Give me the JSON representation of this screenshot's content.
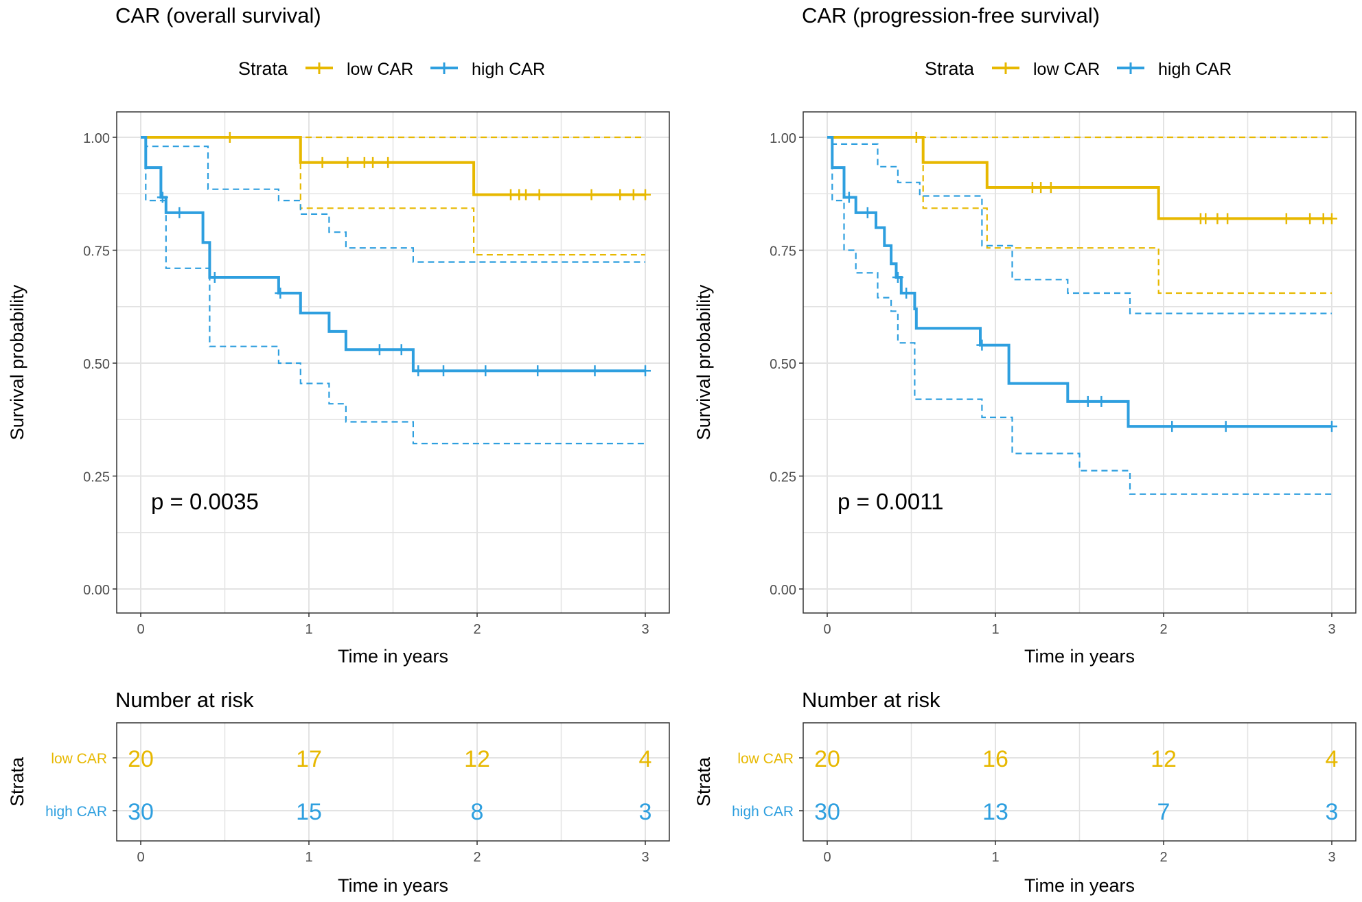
{
  "legend_title": "Strata",
  "strata_labels": [
    "low CAR",
    "high CAR"
  ],
  "strata_colors": [
    "#E7B800",
    "#2E9FDF"
  ],
  "risk_title": "Number at risk",
  "chart_data": [
    {
      "type": "line",
      "subtype": "kaplan-meier",
      "title": "CAR (overall survival)",
      "xlabel": "Time in years",
      "ylabel": "Survival probability",
      "xlim": [
        0,
        3
      ],
      "ylim": [
        0,
        1
      ],
      "xticks": [
        "0",
        "1",
        "2",
        "3"
      ],
      "yticks": [
        "0.00",
        "0.25",
        "0.50",
        "0.75",
        "1.00"
      ],
      "pvalue": "p = 0.0035",
      "series": [
        {
          "name": "low CAR",
          "steps": [
            [
              0,
              1.0
            ],
            [
              0.95,
              0.944
            ],
            [
              1.98,
              0.873
            ],
            [
              3.0,
              0.873
            ]
          ],
          "ci_lower": [
            [
              0,
              1.0
            ],
            [
              0.95,
              0.843
            ],
            [
              1.98,
              0.74
            ],
            [
              3.0,
              0.74
            ]
          ],
          "ci_upper": [
            [
              0,
              1.0
            ],
            [
              3.0,
              1.0
            ]
          ],
          "censor": [
            [
              0.53,
              1.0
            ],
            [
              1.08,
              0.944
            ],
            [
              1.23,
              0.944
            ],
            [
              1.33,
              0.944
            ],
            [
              1.38,
              0.944
            ],
            [
              1.47,
              0.944
            ],
            [
              2.2,
              0.873
            ],
            [
              2.25,
              0.873
            ],
            [
              2.29,
              0.873
            ],
            [
              2.37,
              0.873
            ],
            [
              2.68,
              0.873
            ],
            [
              2.85,
              0.873
            ],
            [
              2.93,
              0.873
            ],
            [
              3.0,
              0.873
            ]
          ]
        },
        {
          "name": "high CAR",
          "steps": [
            [
              0,
              1.0
            ],
            [
              0.03,
              0.933
            ],
            [
              0.12,
              0.867
            ],
            [
              0.15,
              0.833
            ],
            [
              0.37,
              0.767
            ],
            [
              0.41,
              0.69
            ],
            [
              0.82,
              0.655
            ],
            [
              0.95,
              0.611
            ],
            [
              1.12,
              0.57
            ],
            [
              1.22,
              0.53
            ],
            [
              1.62,
              0.483
            ],
            [
              3.0,
              0.483
            ]
          ],
          "ci_lower": [
            [
              0,
              1.0
            ],
            [
              0.03,
              0.86
            ],
            [
              0.15,
              0.71
            ],
            [
              0.41,
              0.537
            ],
            [
              0.82,
              0.5
            ],
            [
              0.95,
              0.455
            ],
            [
              1.12,
              0.41
            ],
            [
              1.22,
              0.37
            ],
            [
              1.62,
              0.322
            ],
            [
              3.0,
              0.322
            ]
          ],
          "ci_upper": [
            [
              0,
              1.0
            ],
            [
              0.03,
              0.98
            ],
            [
              0.4,
              0.885
            ],
            [
              0.82,
              0.86
            ],
            [
              0.95,
              0.83
            ],
            [
              1.12,
              0.79
            ],
            [
              1.22,
              0.755
            ],
            [
              1.62,
              0.724
            ],
            [
              3.0,
              0.724
            ]
          ],
          "censor": [
            [
              0.13,
              0.867
            ],
            [
              0.23,
              0.833
            ],
            [
              0.44,
              0.69
            ],
            [
              0.83,
              0.655
            ],
            [
              1.42,
              0.53
            ],
            [
              1.55,
              0.53
            ],
            [
              1.65,
              0.483
            ],
            [
              1.8,
              0.483
            ],
            [
              2.05,
              0.483
            ],
            [
              2.36,
              0.483
            ],
            [
              2.7,
              0.483
            ],
            [
              3.0,
              0.483
            ]
          ]
        }
      ],
      "risk_table": {
        "xticks": [
          "0",
          "1",
          "2",
          "3"
        ],
        "low CAR": [
          "20",
          "17",
          "12",
          "4"
        ],
        "high CAR": [
          "30",
          "15",
          "8",
          "3"
        ]
      }
    },
    {
      "type": "line",
      "subtype": "kaplan-meier",
      "title": "CAR (progression-free survival)",
      "xlabel": "Time in years",
      "ylabel": "Survival probability",
      "xlim": [
        0,
        3
      ],
      "ylim": [
        0,
        1
      ],
      "xticks": [
        "0",
        "1",
        "2",
        "3"
      ],
      "yticks": [
        "0.00",
        "0.25",
        "0.50",
        "0.75",
        "1.00"
      ],
      "pvalue": "p = 0.0011",
      "series": [
        {
          "name": "low CAR",
          "steps": [
            [
              0,
              1.0
            ],
            [
              0.57,
              0.944
            ],
            [
              0.95,
              0.889
            ],
            [
              1.97,
              0.82
            ],
            [
              3.0,
              0.82
            ]
          ],
          "ci_lower": [
            [
              0,
              1.0
            ],
            [
              0.57,
              0.843
            ],
            [
              0.95,
              0.755
            ],
            [
              1.97,
              0.655
            ],
            [
              3.0,
              0.655
            ]
          ],
          "ci_upper": [
            [
              0,
              1.0
            ],
            [
              3.0,
              1.0
            ]
          ],
          "censor": [
            [
              0.53,
              1.0
            ],
            [
              1.22,
              0.889
            ],
            [
              1.27,
              0.889
            ],
            [
              1.33,
              0.889
            ],
            [
              2.22,
              0.82
            ],
            [
              2.25,
              0.82
            ],
            [
              2.32,
              0.82
            ],
            [
              2.38,
              0.82
            ],
            [
              2.73,
              0.82
            ],
            [
              2.87,
              0.82
            ],
            [
              2.95,
              0.82
            ],
            [
              3.0,
              0.82
            ]
          ]
        },
        {
          "name": "high CAR",
          "steps": [
            [
              0,
              1.0
            ],
            [
              0.03,
              0.933
            ],
            [
              0.1,
              0.867
            ],
            [
              0.17,
              0.833
            ],
            [
              0.29,
              0.8
            ],
            [
              0.34,
              0.76
            ],
            [
              0.38,
              0.72
            ],
            [
              0.41,
              0.69
            ],
            [
              0.44,
              0.655
            ],
            [
              0.52,
              0.62
            ],
            [
              0.53,
              0.577
            ],
            [
              0.91,
              0.54
            ],
            [
              1.08,
              0.455
            ],
            [
              1.43,
              0.415
            ],
            [
              1.79,
              0.36
            ],
            [
              3.0,
              0.36
            ]
          ],
          "ci_lower": [
            [
              0,
              1.0
            ],
            [
              0.03,
              0.86
            ],
            [
              0.1,
              0.75
            ],
            [
              0.17,
              0.7
            ],
            [
              0.3,
              0.645
            ],
            [
              0.38,
              0.615
            ],
            [
              0.42,
              0.545
            ],
            [
              0.52,
              0.42
            ],
            [
              0.92,
              0.38
            ],
            [
              1.1,
              0.3
            ],
            [
              1.5,
              0.262
            ],
            [
              1.8,
              0.21
            ],
            [
              3.0,
              0.21
            ]
          ],
          "ci_upper": [
            [
              0,
              1.0
            ],
            [
              0.03,
              0.985
            ],
            [
              0.3,
              0.935
            ],
            [
              0.42,
              0.9
            ],
            [
              0.55,
              0.87
            ],
            [
              0.92,
              0.76
            ],
            [
              1.1,
              0.685
            ],
            [
              1.43,
              0.655
            ],
            [
              1.8,
              0.61
            ],
            [
              3.0,
              0.61
            ]
          ],
          "censor": [
            [
              0.13,
              0.867
            ],
            [
              0.24,
              0.833
            ],
            [
              0.42,
              0.69
            ],
            [
              0.47,
              0.655
            ],
            [
              0.92,
              0.54
            ],
            [
              1.55,
              0.415
            ],
            [
              1.63,
              0.415
            ],
            [
              2.05,
              0.36
            ],
            [
              2.37,
              0.36
            ],
            [
              3.0,
              0.36
            ]
          ]
        }
      ],
      "risk_table": {
        "xticks": [
          "0",
          "1",
          "2",
          "3"
        ],
        "low CAR": [
          "20",
          "16",
          "12",
          "4"
        ],
        "high CAR": [
          "30",
          "13",
          "7",
          "3"
        ]
      }
    }
  ]
}
